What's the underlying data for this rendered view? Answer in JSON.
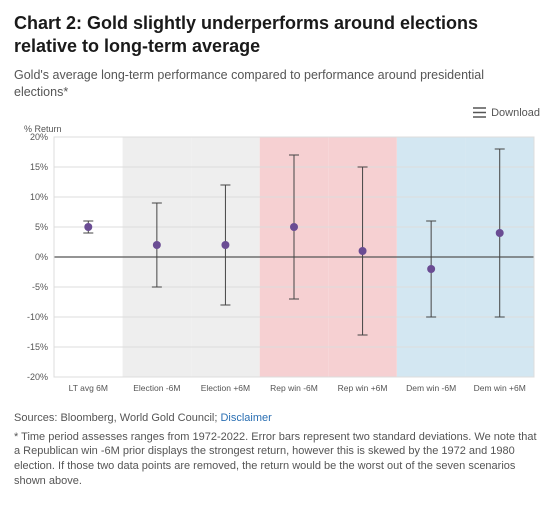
{
  "title": "Chart 2: Gold slightly underperforms around elections relative to long-term average",
  "subtitle": "Gold's average long-term performance compared to performance around presidential elections*",
  "download_label": "Download",
  "chart": {
    "type": "dot-errorbar",
    "y_axis_label": "% Return",
    "ylim": [
      -20,
      20
    ],
    "ytick_step": 5,
    "background_color": "#ffffff",
    "grid_color": "#dcdcdc",
    "axis_color": "#888888",
    "zero_line_color": "#555555",
    "marker_color": "#6a4c93",
    "errorbar_color": "#444444",
    "marker_radius": 4,
    "band_colors": {
      "white": "#ffffff",
      "grey": "#eeeeee",
      "red": "#f6d0d2",
      "blue": "#d3e7f2"
    },
    "categories": [
      {
        "label": "LT avg 6M",
        "mean": 5.0,
        "err": 1.0,
        "band": "white"
      },
      {
        "label": "Election -6M",
        "mean": 2.0,
        "err": 7.0,
        "band": "grey"
      },
      {
        "label": "Election +6M",
        "mean": 2.0,
        "err": 10.0,
        "band": "grey"
      },
      {
        "label": "Rep win -6M",
        "mean": 5.0,
        "err": 12.0,
        "band": "red"
      },
      {
        "label": "Rep win +6M",
        "mean": 1.0,
        "err": 14.0,
        "band": "red"
      },
      {
        "label": "Dem win -6M",
        "mean": -2.0,
        "err": 8.0,
        "band": "blue"
      },
      {
        "label": "Dem win +6M",
        "mean": 4.0,
        "err": 14.0,
        "band": "blue"
      }
    ]
  },
  "source_prefix": "Sources: Bloomberg, World Gold Council; ",
  "source_link_label": "Disclaimer",
  "footnote": "* Time period assesses ranges from 1972-2022. Error bars represent two standard deviations. We note that a Republican win -6M prior displays the strongest return, however this is skewed by the 1972 and 1980 election. If those two data points are removed, the return would be the worst out of the seven scenarios shown above."
}
